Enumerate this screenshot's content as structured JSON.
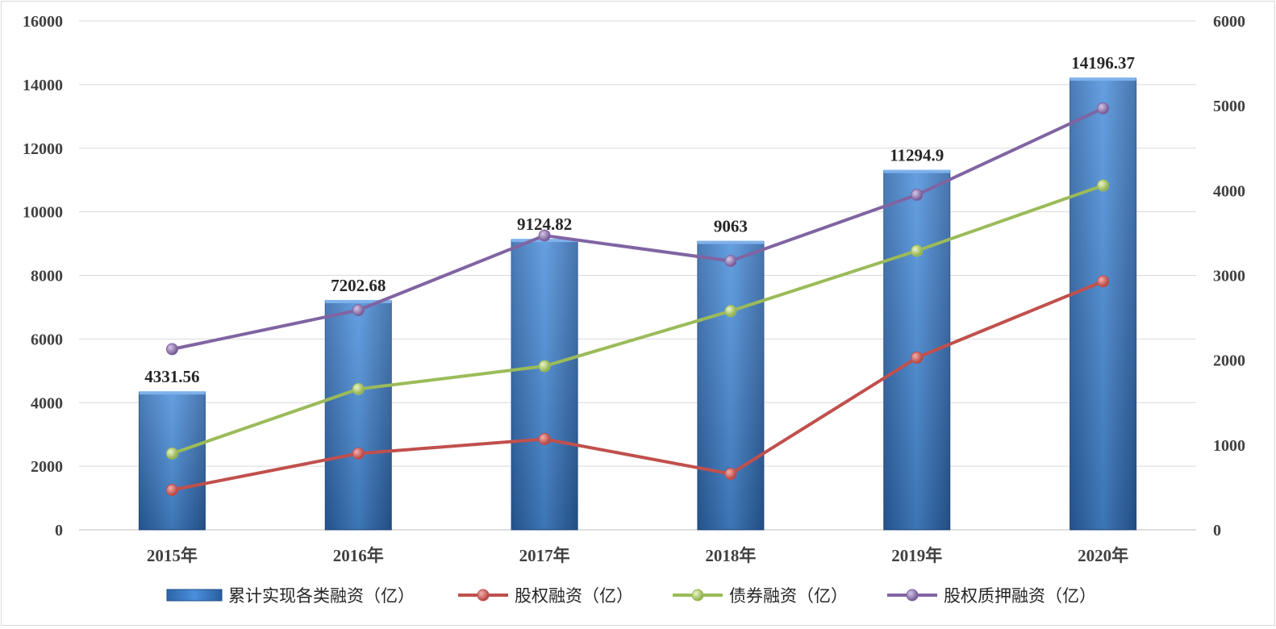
{
  "chart_data": {
    "type": "bar",
    "categories": [
      "2015年",
      "2016年",
      "2017年",
      "2018年",
      "2019年",
      "2020年"
    ],
    "ylim": [
      0,
      16000
    ],
    "y2lim": [
      0,
      6000
    ],
    "yticks": [
      0,
      2000,
      4000,
      6000,
      8000,
      10000,
      12000,
      14000,
      16000
    ],
    "y2ticks": [
      0,
      1000,
      2000,
      3000,
      4000,
      5000,
      6000
    ],
    "grid": true,
    "legend": "bottom",
    "series": [
      {
        "name": "累计实现各类融资（亿）",
        "type": "bar",
        "axis": "left",
        "color": "#3d7dc8",
        "values": [
          4331.56,
          7202.68,
          9124.82,
          9063,
          11294.9,
          14196.37
        ],
        "labels": [
          "4331.56",
          "7202.68",
          "9124.82",
          "9063",
          "11294.9",
          "14196.37"
        ]
      },
      {
        "name": "股权融资（亿）",
        "type": "line",
        "axis": "right",
        "color": "#c0504d",
        "values": [
          470,
          900,
          1070,
          660,
          2030,
          2930
        ]
      },
      {
        "name": "债券融资（亿）",
        "type": "line",
        "axis": "right",
        "color": "#9bbb59",
        "values": [
          900,
          1660,
          1930,
          2580,
          3290,
          4060
        ]
      },
      {
        "name": "股权质押融资（亿）",
        "type": "line",
        "axis": "right",
        "color": "#8064a2",
        "values": [
          2130,
          2590,
          3470,
          3170,
          3950,
          4970
        ]
      }
    ]
  }
}
